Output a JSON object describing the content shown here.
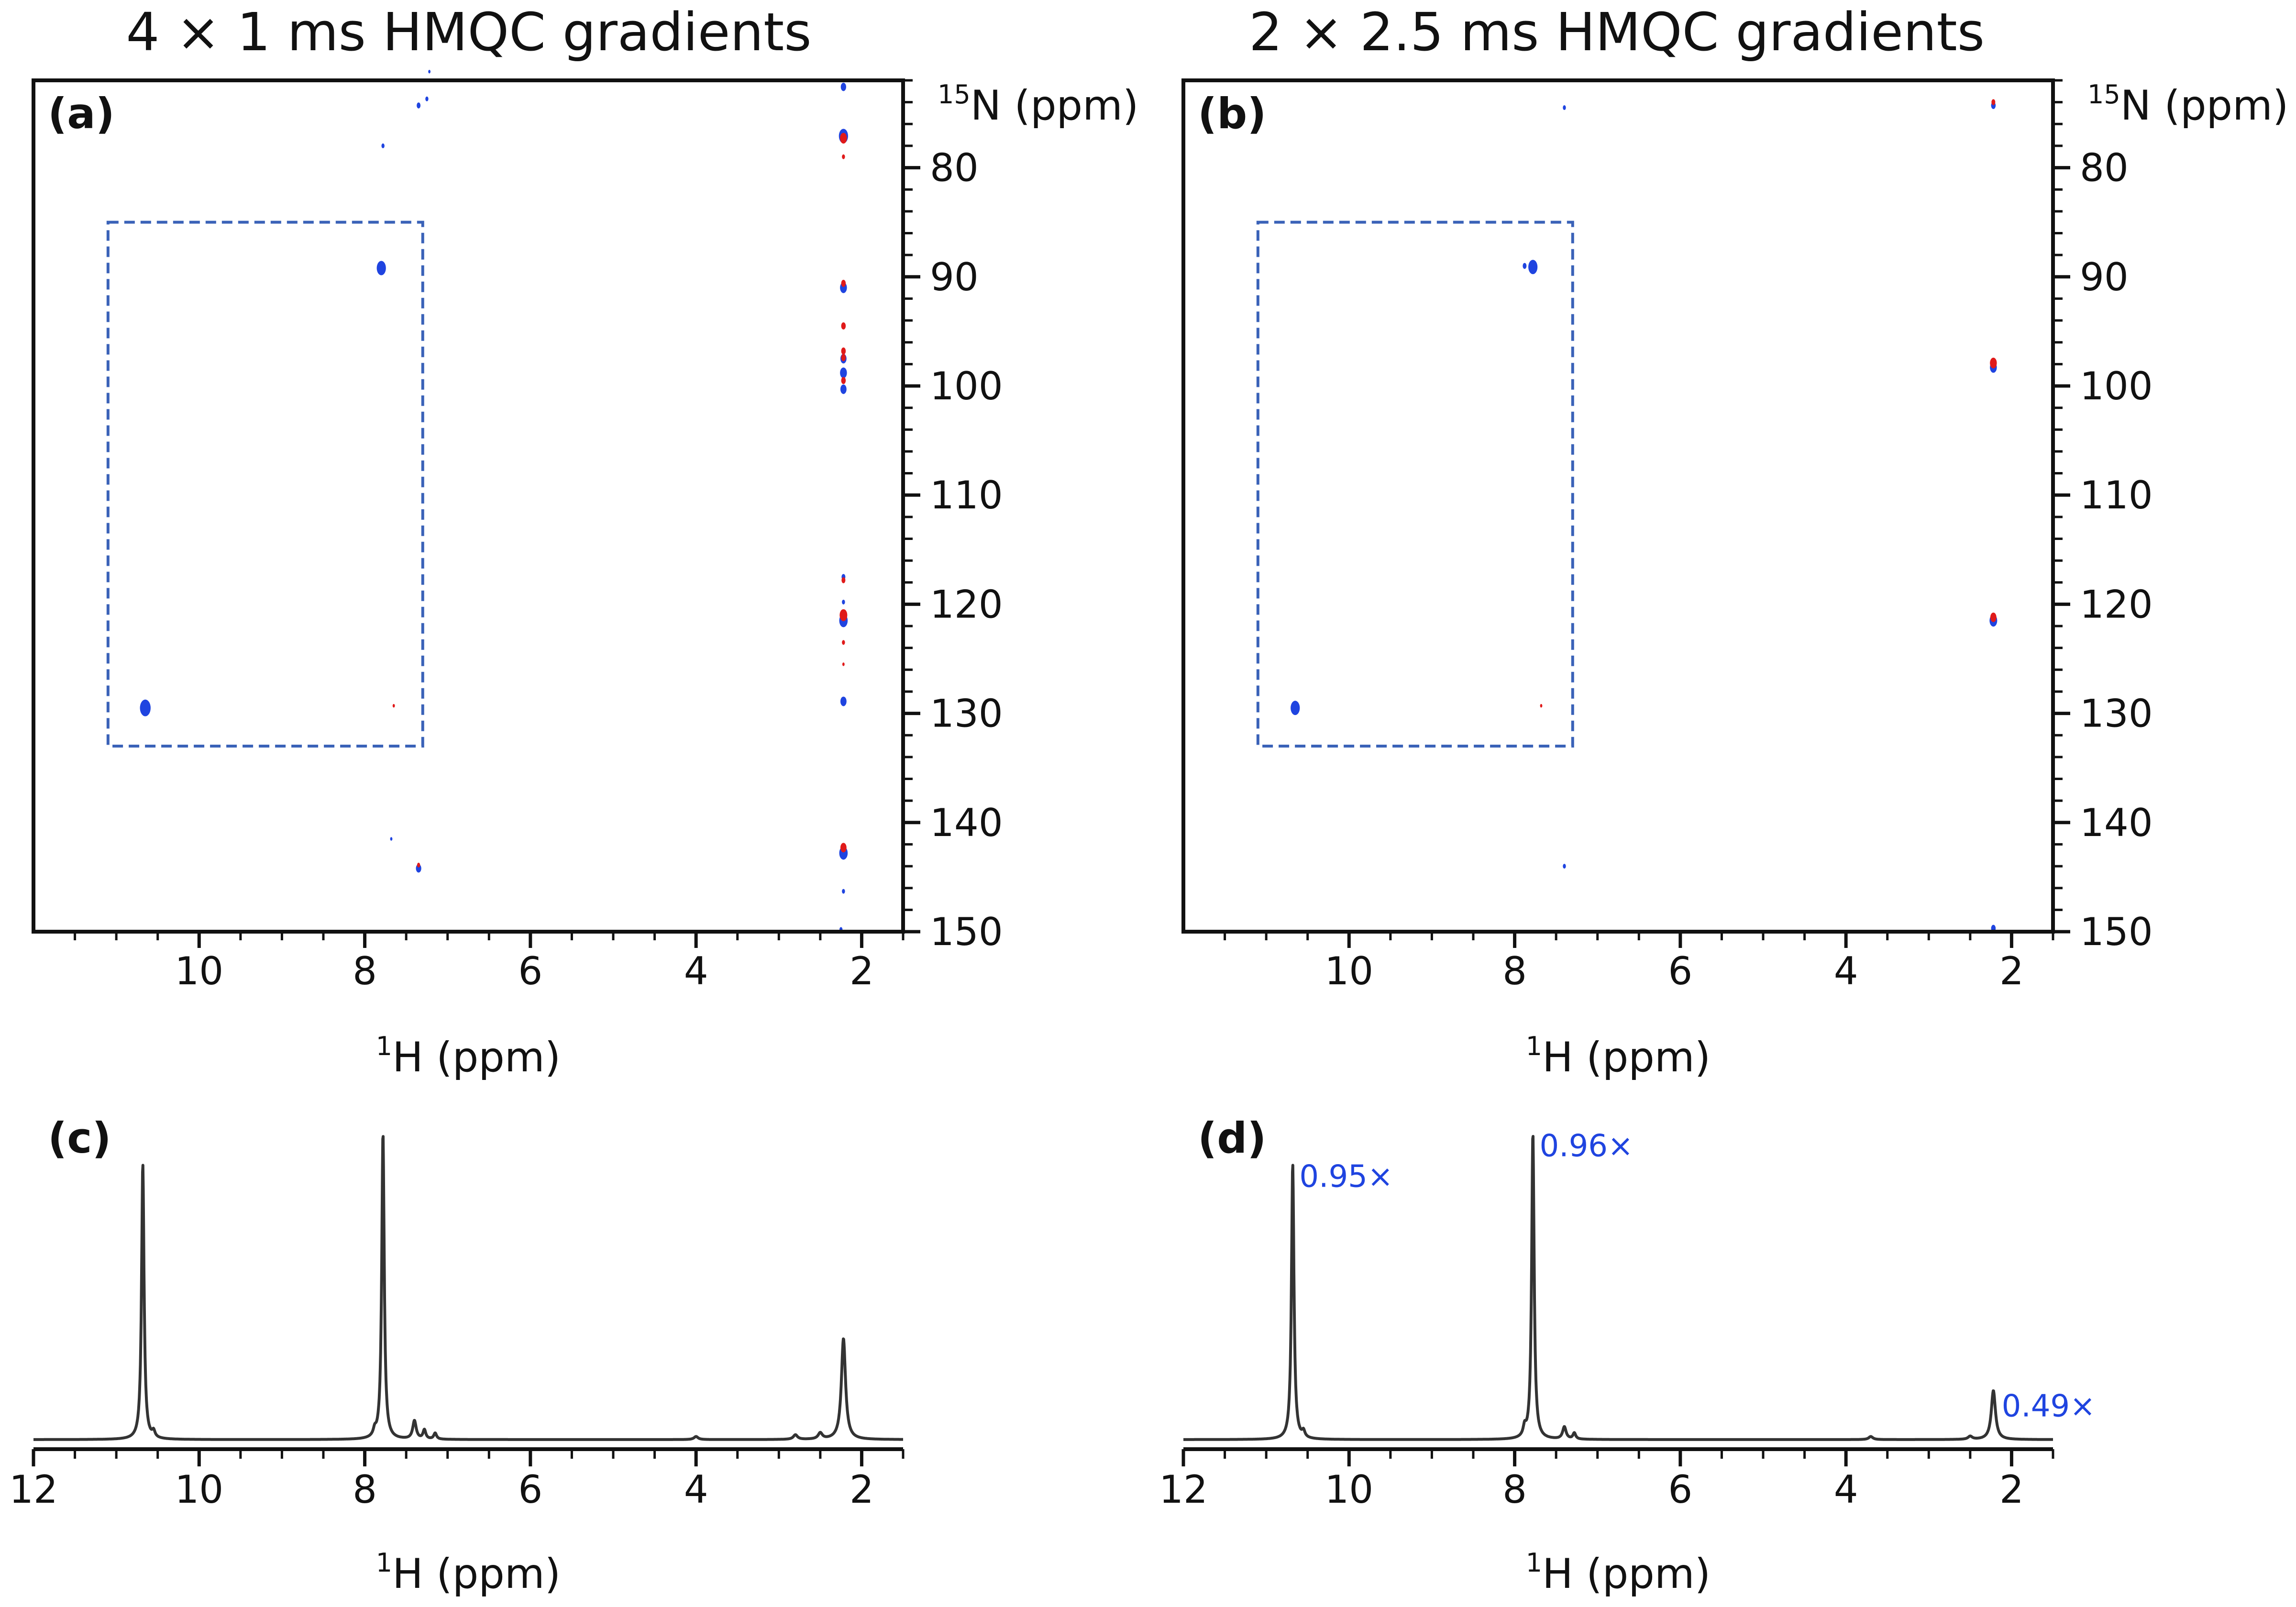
{
  "chart_data": [
    {
      "panel": "(a)",
      "type": "scatter",
      "title": "4 × 1 ms HMQC gradients",
      "xlabel": {
        "sup": "1",
        "text": "H (ppm)"
      },
      "ylabel": {
        "sup": "15",
        "text": "N (ppm)"
      },
      "xlim": [
        12.0,
        1.5
      ],
      "ylim": [
        150,
        72
      ],
      "xticks": [
        10,
        8,
        6,
        4,
        2
      ],
      "xtick_labels": [
        "10",
        "8",
        "6",
        "4",
        "2"
      ],
      "yticks": [
        80,
        90,
        100,
        110,
        120,
        130,
        140,
        150
      ],
      "ytick_labels": [
        "80",
        "90",
        "100",
        "110",
        "120",
        "130",
        "140",
        "150"
      ],
      "highlight_box": {
        "x": [
          11.1,
          7.3
        ],
        "y": [
          85,
          133
        ],
        "color": "#3a62b8"
      },
      "series": [
        {
          "color": "#1f44e0",
          "points": [
            [
              10.65,
              129.5,
              14
            ],
            [
              7.8,
              89.2,
              12
            ],
            [
              7.78,
              78,
              4
            ],
            [
              7.35,
              74.3,
              5
            ],
            [
              7.25,
              73.7,
              4
            ],
            [
              7.22,
              71.2,
              3
            ],
            [
              7.35,
              144.2,
              7
            ],
            [
              7.68,
              141.5,
              3
            ],
            [
              2.22,
              72.6,
              7
            ],
            [
              2.22,
              77.1,
              12
            ],
            [
              2.22,
              91.0,
              9
            ],
            [
              2.22,
              97.5,
              8
            ],
            [
              2.22,
              98.8,
              9
            ],
            [
              2.22,
              100.3,
              8
            ],
            [
              2.22,
              117.5,
              5
            ],
            [
              2.22,
              119.8,
              4
            ],
            [
              2.22,
              121.5,
              11
            ],
            [
              2.22,
              128.9,
              8
            ],
            [
              2.22,
              142.8,
              11
            ],
            [
              2.22,
              146.3,
              4
            ],
            [
              2.25,
              149.8,
              4
            ]
          ]
        },
        {
          "color": "#e01a1a",
          "points": [
            [
              7.65,
              129.3,
              3
            ],
            [
              7.35,
              143.9,
              4
            ],
            [
              2.22,
              77.3,
              9
            ],
            [
              2.22,
              79.0,
              4
            ],
            [
              2.22,
              90.6,
              6
            ],
            [
              2.22,
              94.5,
              6
            ],
            [
              2.22,
              96.8,
              6
            ],
            [
              2.22,
              97.4,
              6
            ],
            [
              2.22,
              99.5,
              6
            ],
            [
              2.22,
              117.8,
              5
            ],
            [
              2.22,
              121.0,
              10
            ],
            [
              2.22,
              123.5,
              4
            ],
            [
              2.22,
              125.5,
              3
            ],
            [
              2.22,
              142.3,
              8
            ]
          ]
        }
      ]
    },
    {
      "panel": "(b)",
      "type": "scatter",
      "title": "2 × 2.5 ms HMQC gradients",
      "xlabel": {
        "sup": "1",
        "text": "H (ppm)"
      },
      "ylabel": {
        "sup": "15",
        "text": "N (ppm)"
      },
      "xlim": [
        12.0,
        1.5
      ],
      "ylim": [
        150,
        72
      ],
      "xticks": [
        10,
        8,
        6,
        4,
        2
      ],
      "xtick_labels": [
        "10",
        "8",
        "6",
        "4",
        "2"
      ],
      "yticks": [
        80,
        90,
        100,
        110,
        120,
        130,
        140,
        150
      ],
      "ytick_labels": [
        "80",
        "90",
        "100",
        "110",
        "120",
        "130",
        "140",
        "150"
      ],
      "highlight_box": {
        "x": [
          11.1,
          7.3
        ],
        "y": [
          85,
          133
        ],
        "color": "#3a62b8"
      },
      "series": [
        {
          "color": "#1f44e0",
          "points": [
            [
              10.65,
              129.5,
              12
            ],
            [
              7.78,
              89.1,
              12
            ],
            [
              7.88,
              89.0,
              5
            ],
            [
              7.4,
              74.5,
              4
            ],
            [
              7.4,
              144.0,
              4
            ],
            [
              2.22,
              74.3,
              6
            ],
            [
              2.22,
              98.3,
              9
            ],
            [
              2.22,
              121.5,
              10
            ],
            [
              2.22,
              149.7,
              6
            ]
          ]
        },
        {
          "color": "#e01a1a",
          "points": [
            [
              7.68,
              129.3,
              3
            ],
            [
              2.22,
              74.0,
              5
            ],
            [
              2.22,
              97.9,
              9
            ],
            [
              2.22,
              121.2,
              8
            ]
          ]
        }
      ]
    },
    {
      "panel": "(c)",
      "type": "line",
      "xlabel": {
        "sup": "1",
        "text": "H (ppm)"
      },
      "xlim": [
        12.0,
        1.5
      ],
      "xticks": [
        12,
        10,
        8,
        6,
        4,
        2
      ],
      "xtick_labels": [
        "12",
        "10",
        "8",
        "6",
        "4",
        "2"
      ],
      "line_color": "#333333",
      "baseline": 0,
      "peaks": [
        {
          "x": 10.68,
          "height": 0.9,
          "width": 0.018
        },
        {
          "x": 10.55,
          "height": 0.02,
          "width": 0.02
        },
        {
          "x": 7.88,
          "height": 0.02,
          "width": 0.02
        },
        {
          "x": 7.78,
          "height": 1.0,
          "width": 0.018
        },
        {
          "x": 7.4,
          "height": 0.06,
          "width": 0.025
        },
        {
          "x": 7.28,
          "height": 0.03,
          "width": 0.02
        },
        {
          "x": 7.15,
          "height": 0.02,
          "width": 0.02
        },
        {
          "x": 4.0,
          "height": 0.01,
          "width": 0.03
        },
        {
          "x": 2.8,
          "height": 0.015,
          "width": 0.03
        },
        {
          "x": 2.5,
          "height": 0.02,
          "width": 0.03
        },
        {
          "x": 2.22,
          "height": 0.33,
          "width": 0.03
        }
      ],
      "annotations": []
    },
    {
      "panel": "(d)",
      "type": "line",
      "xlabel": {
        "sup": "1",
        "text": "H (ppm)"
      },
      "xlim": [
        12.0,
        1.5
      ],
      "xticks": [
        12,
        10,
        8,
        6,
        4,
        2
      ],
      "xtick_labels": [
        "12",
        "10",
        "8",
        "6",
        "4",
        "2"
      ],
      "line_color": "#333333",
      "baseline": 0,
      "peaks": [
        {
          "x": 10.68,
          "height": 0.9,
          "width": 0.018
        },
        {
          "x": 10.55,
          "height": 0.02,
          "width": 0.02
        },
        {
          "x": 7.88,
          "height": 0.03,
          "width": 0.02
        },
        {
          "x": 7.78,
          "height": 1.0,
          "width": 0.018
        },
        {
          "x": 7.4,
          "height": 0.04,
          "width": 0.025
        },
        {
          "x": 7.28,
          "height": 0.02,
          "width": 0.02
        },
        {
          "x": 3.7,
          "height": 0.01,
          "width": 0.03
        },
        {
          "x": 2.5,
          "height": 0.01,
          "width": 0.03
        },
        {
          "x": 2.22,
          "height": 0.16,
          "width": 0.03
        }
      ],
      "annotations": [
        {
          "text": "0.95×",
          "x": 10.6,
          "y": 0.86
        },
        {
          "text": "0.96×",
          "x": 7.7,
          "y": 0.96
        },
        {
          "text": "0.49×",
          "x": 2.12,
          "y": 0.11
        }
      ]
    }
  ]
}
